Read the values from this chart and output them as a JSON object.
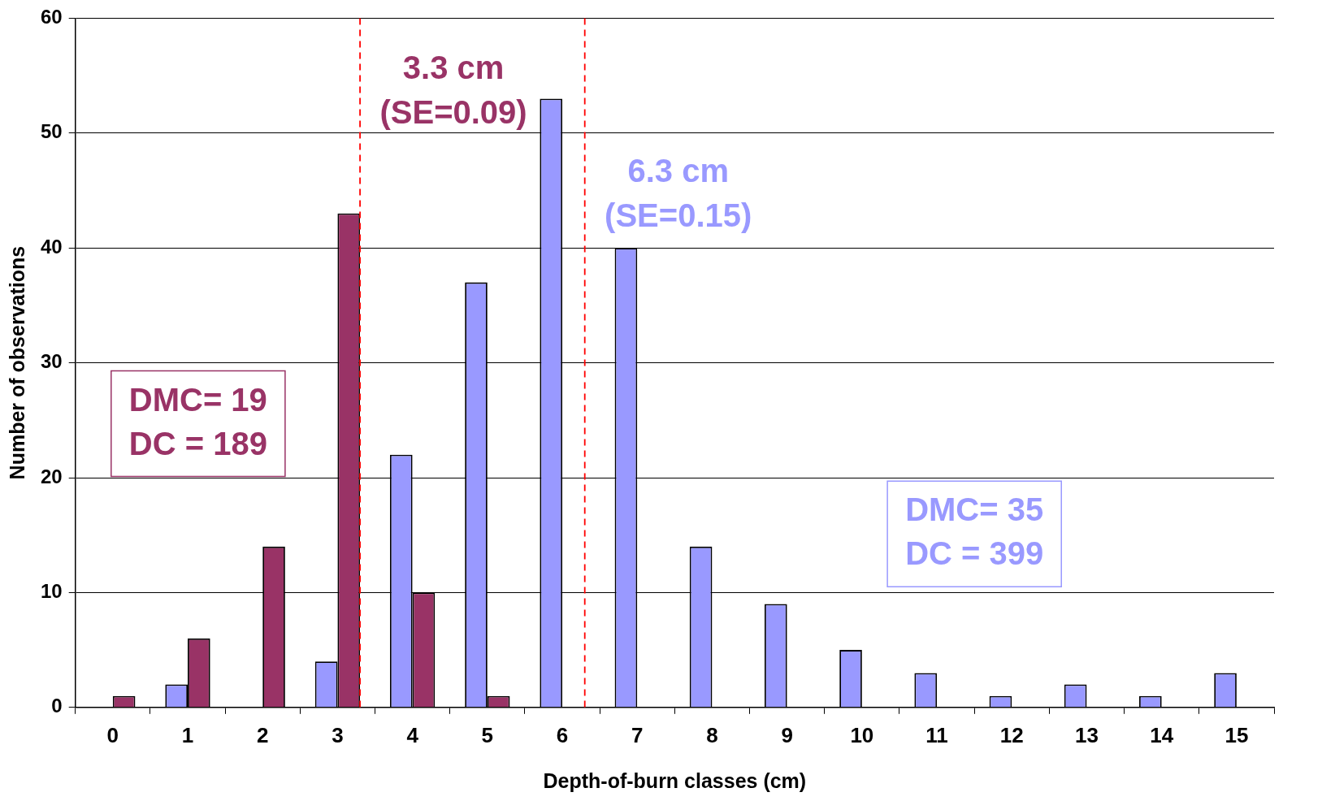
{
  "chart_data": {
    "type": "bar",
    "xlabel": "Depth-of-burn classes (cm)",
    "ylabel": "Number of observations",
    "x": [
      0,
      1,
      2,
      3,
      4,
      5,
      6,
      7,
      8,
      9,
      10,
      11,
      12,
      13,
      14,
      15
    ],
    "series": [
      {
        "color": "#9999ff",
        "values": [
          0,
          2,
          0,
          4,
          22,
          37,
          53,
          40,
          14,
          9,
          5,
          3,
          1,
          2,
          1,
          3
        ]
      },
      {
        "color": "#993366",
        "values": [
          1,
          6,
          14,
          43,
          10,
          1,
          0,
          0,
          0,
          0,
          0,
          0,
          0,
          0,
          0,
          0
        ]
      }
    ],
    "xlim": [
      -0.5,
      15.5
    ],
    "xticks": [
      0,
      1,
      2,
      3,
      4,
      5,
      6,
      7,
      8,
      9,
      10,
      11,
      12,
      13,
      14,
      15
    ],
    "ylim": [
      0,
      60
    ],
    "yticks": [
      0,
      10,
      20,
      30,
      40,
      50,
      60
    ],
    "grid": "y",
    "legend": false,
    "ref_lines": [
      {
        "axis": "x",
        "value": 6.3,
        "label": "6.3 cm\n(SE=0.15)",
        "color": "#ff0000",
        "line_style": "dashed"
      },
      {
        "axis": "x",
        "value": 3.3,
        "label": "3.3 cm\n(SE=0.09)",
        "color": "#ff0000",
        "line_style": "dashed"
      }
    ],
    "annotations": [
      "DMC= 35\nDC = 399",
      "DMC= 19\nDC = 189"
    ]
  }
}
